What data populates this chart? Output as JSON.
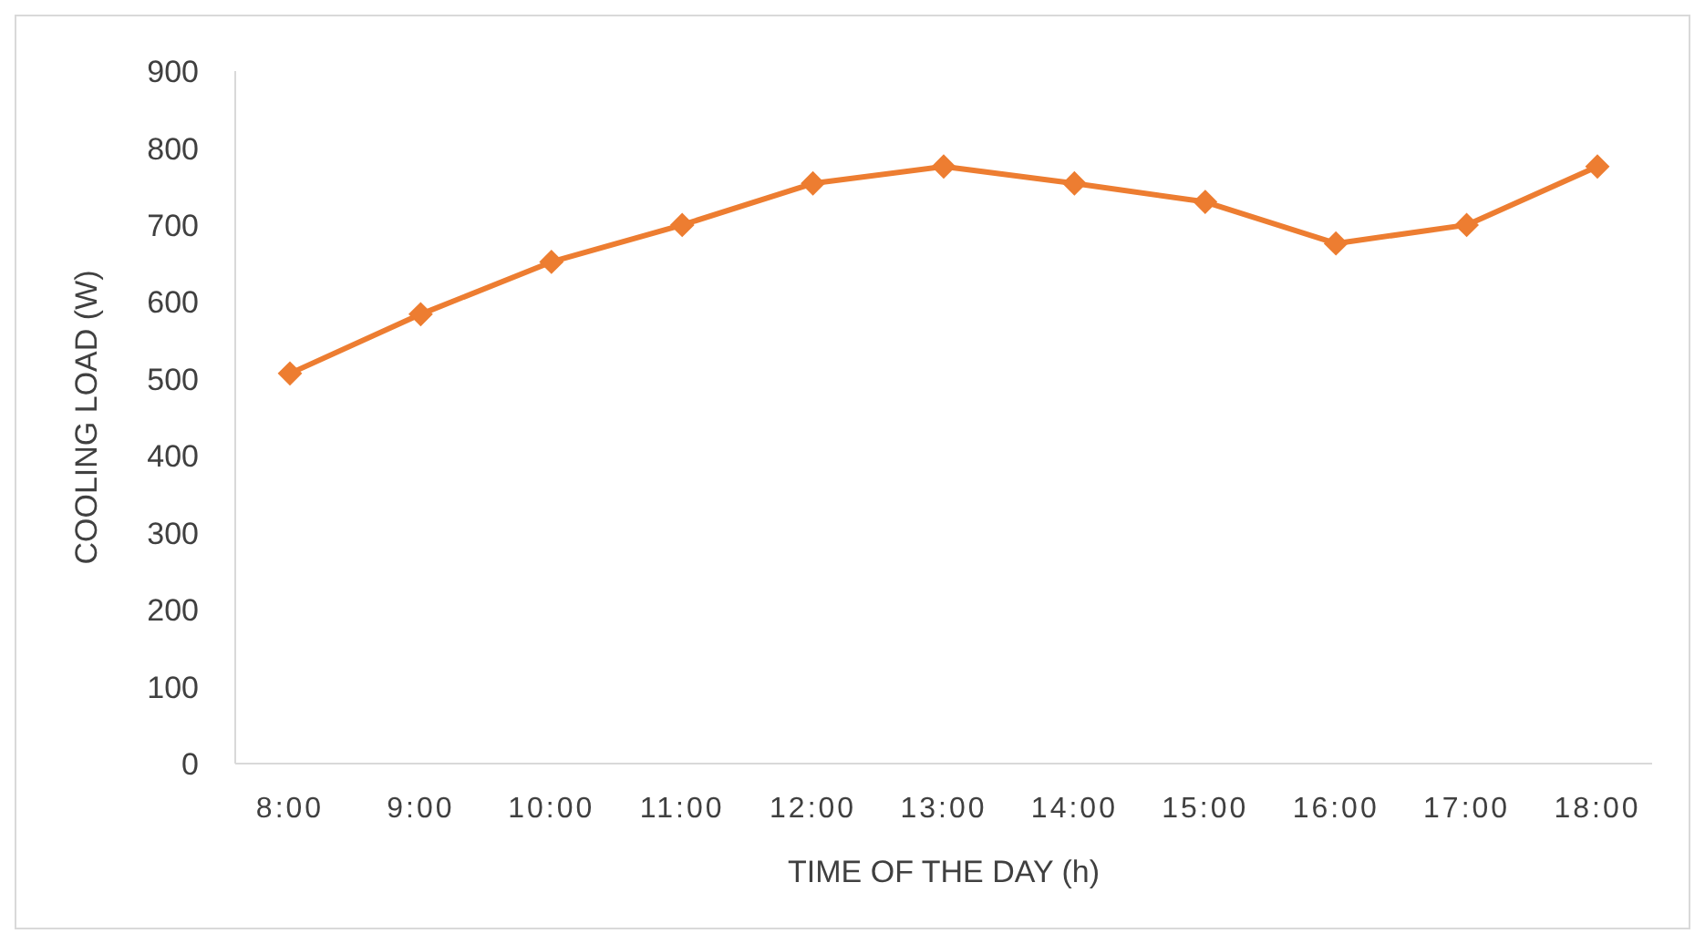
{
  "chart_data": {
    "type": "line",
    "xlabel": "TIME OF THE DAY (h)",
    "ylabel": "COOLING LOAD (W)",
    "categories": [
      "8:00",
      "9:00",
      "10:00",
      "11:00",
      "12:00",
      "13:00",
      "14:00",
      "15:00",
      "16:00",
      "17:00",
      "18:00"
    ],
    "series": [
      {
        "color": "#ed7d31",
        "values": [
          507,
          584,
          652,
          700,
          754,
          776,
          754,
          730,
          676,
          700,
          776
        ]
      }
    ],
    "ylim": [
      0,
      900
    ],
    "yticks": [
      0,
      100,
      200,
      300,
      400,
      500,
      600,
      700,
      800,
      900
    ],
    "grid": false,
    "legend": false,
    "marker": "diamond",
    "line_style": "solid"
  }
}
